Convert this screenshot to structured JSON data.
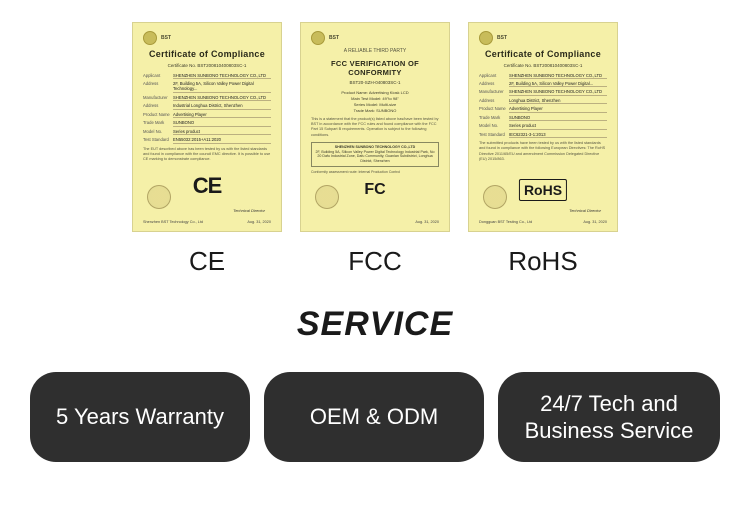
{
  "certificates": [
    {
      "company": "BST",
      "title": "Certificate of Compliance",
      "subtitle": "",
      "ref_label": "Certificate No.",
      "ref_value": "BST200810400803SC-1",
      "fields": [
        {
          "label": "Applicant",
          "value": "SHENZHEN SUNBONO TECHNOLOGY CO.,LTD"
        },
        {
          "label": "Address",
          "value": "2F, Building 5A, Silicon Valley Power Digital Technology..."
        },
        {
          "label": "Manufacturer",
          "value": "SHENZHEN SUNBONO TECHNOLOGY CO.,LTD"
        },
        {
          "label": "Address",
          "value": "Industrial Longhua District, Shenzhen"
        },
        {
          "label": "Product Name",
          "value": "Advertising Player"
        },
        {
          "label": "Trade Mark",
          "value": "SUNBONO"
        },
        {
          "label": "Model No.",
          "value": "Series product"
        },
        {
          "label": "Test Standard",
          "value": "EN55032:2015+A11:2020"
        }
      ],
      "mark": "CE",
      "mark_class": "",
      "footer_left": "Shenzhen BST Technology Co., Ltd",
      "footer_right": "Aug. 31, 2020",
      "sig": "Technical Director",
      "label": "CE"
    },
    {
      "company": "BST",
      "title": "FCC VERIFICATION OF CONFORMITY",
      "subtitle": "A RELIABLE THIRD PARTY",
      "ref_label": "",
      "ref_value": "BST20-SZH-040803SC-1",
      "fields": [],
      "subfields": [
        "Product Name: Advertising Kiosk LCD",
        "Main Test Model: 49''to 98''",
        "Series Model: Multi-size",
        "Trade Mark: SUNBONO"
      ],
      "body": "This is a statement that the product(s) listed above has/have been tested by BST in accordance with the FCC rules and found compliance with the FCC Part 15 Subpart B requirements. Operation is subject to the following conditions.",
      "block_title": "SHENZHEN SUNBONO TECHNOLOGY CO.,LTD",
      "block_addr": "2F, Building 5A, Silicon Valley Power Digital Technology Industrial Park, No 20 Dafu Industrial Zone, Dafu Community, Guanlan Subdistrict, Longhua District, Shenzhen",
      "mark": "FC",
      "mark_class": "cert-mark-fcc",
      "footer_left": "",
      "footer_right": "Aug. 31, 2020",
      "sig": "",
      "label": "FCC"
    },
    {
      "company": "BST",
      "title": "Certificate of Compliance",
      "subtitle": "",
      "ref_label": "Certificate No.",
      "ref_value": "BST200810400803SC-1",
      "fields": [
        {
          "label": "Applicant",
          "value": "SHENZHEN SUNBONO TECHNOLOGY CO.,LTD"
        },
        {
          "label": "Address",
          "value": "2F, Building 5A, Silicon Valley Power Digital..."
        },
        {
          "label": "Manufacturer",
          "value": "SHENZHEN SUNBONO TECHNOLOGY CO.,LTD"
        },
        {
          "label": "Address",
          "value": "Longhua District, Shenzhen"
        },
        {
          "label": "Product Name",
          "value": "Advertising Player"
        },
        {
          "label": "Trade Mark",
          "value": "SUNBONO"
        },
        {
          "label": "Model No.",
          "value": "Series product"
        },
        {
          "label": "Test Standard",
          "value": "IEC62321-3-1:2013"
        }
      ],
      "mark": "RoHS",
      "mark_class": "cert-mark-rohs",
      "footer_left": "Dongguan BST Testing Co., Ltd",
      "footer_right": "Aug. 31, 2020",
      "sig": "Technical Director",
      "label": "RoHS"
    }
  ],
  "service_title": "SERVICE",
  "service_pills": [
    "5 Years Warranty",
    "OEM & ODM",
    "24/7 Tech and Business Service"
  ],
  "colors": {
    "cert_bg": "#f5f0a8",
    "pill_bg": "#2f2f2f",
    "pill_text": "#ffffff",
    "page_bg": "#ffffff"
  }
}
